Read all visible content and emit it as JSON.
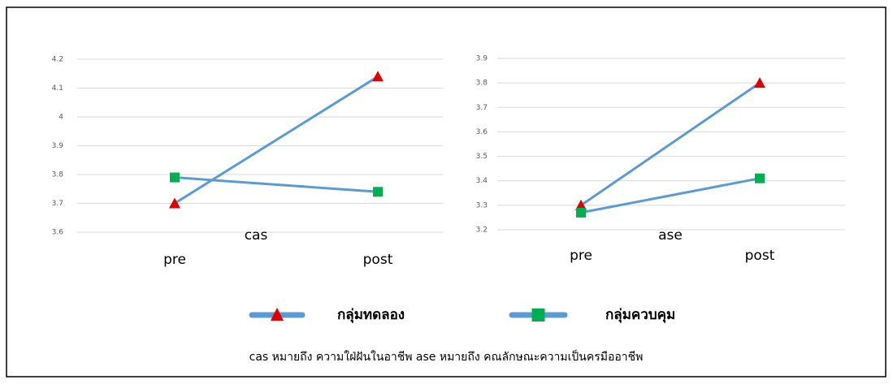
{
  "chart_data": [
    {
      "type": "line",
      "title": "cas",
      "categories": [
        "pre",
        "post"
      ],
      "series": [
        {
          "name": "กลุ่มทดลอง",
          "color": "#5b9bd5",
          "marker": "triangle",
          "marker_color": "#e00000",
          "values": [
            3.7,
            4.14
          ]
        },
        {
          "name": "กลุ่มควบคุม",
          "color": "#5b9bd5",
          "marker": "square",
          "marker_color": "#00b050",
          "values": [
            3.79,
            3.74
          ]
        }
      ],
      "ylim": [
        3.6,
        4.2
      ],
      "yticks": [
        3.6,
        3.7,
        3.8,
        3.9,
        4,
        4.1,
        4.2
      ],
      "grid": true
    },
    {
      "type": "line",
      "title": "ase",
      "categories": [
        "pre",
        "post"
      ],
      "series": [
        {
          "name": "กลุ่มทดลอง",
          "color": "#5b9bd5",
          "marker": "triangle",
          "marker_color": "#e00000",
          "values": [
            3.3,
            3.8
          ]
        },
        {
          "name": "กลุ่มควบคุม",
          "color": "#5b9bd5",
          "marker": "square",
          "marker_color": "#00b050",
          "values": [
            3.27,
            3.41
          ]
        }
      ],
      "ylim": [
        3.2,
        3.9
      ],
      "yticks": [
        3.2,
        3.3,
        3.4,
        3.5,
        3.6,
        3.7,
        3.8,
        3.9
      ],
      "grid": true
    }
  ],
  "note": "cas หมายถึง ความใฝ่ฝันในอาชีพ  ase หมายถึง คณลักษณะความเป็นครมืออาชีพ"
}
